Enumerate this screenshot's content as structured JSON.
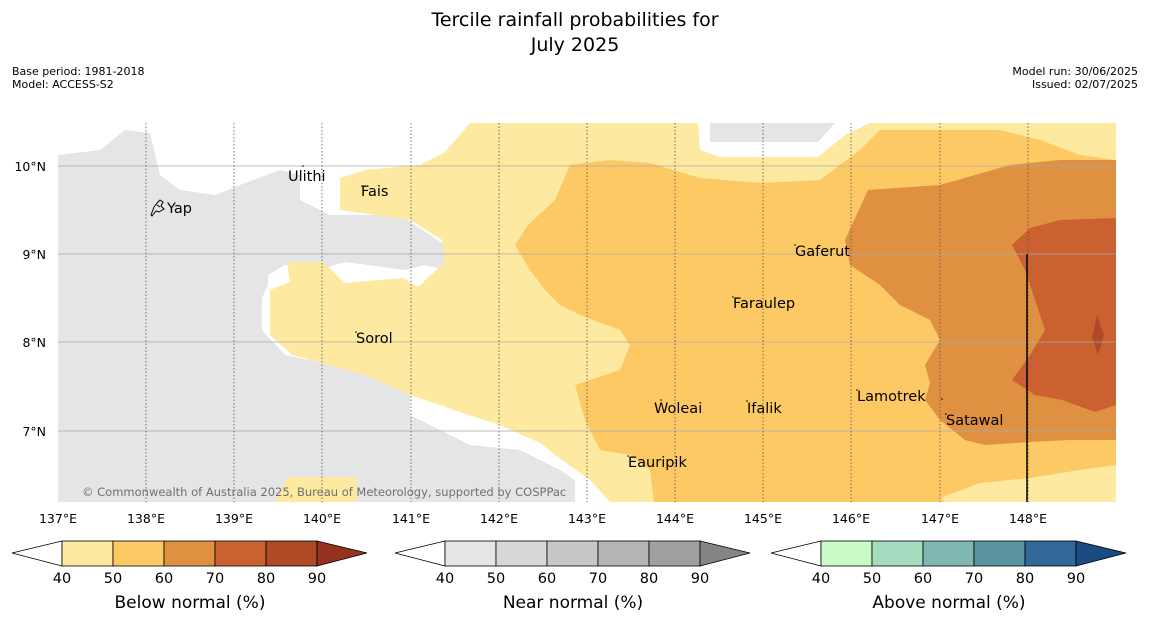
{
  "title": {
    "line1": "Tercile rainfall probabilities for",
    "line2": "July 2025"
  },
  "meta_left": {
    "base_period": "Base period: 1981-2018",
    "model": "Model: ACCESS-S2"
  },
  "meta_right": {
    "model_run": "Model run: 30/06/2025",
    "issued": "Issued: 02/07/2025"
  },
  "copyright": "© Commonwealth of Australia 2025, Bureau of Meteorology, supported by COSPPac",
  "map": {
    "lon_labels": [
      "137°E",
      "138°E",
      "139°E",
      "140°E",
      "141°E",
      "142°E",
      "143°E",
      "144°E",
      "145°E",
      "146°E",
      "147°E",
      "148°E"
    ],
    "lat_labels": [
      "10°N",
      "9°N",
      "8°N",
      "7°N"
    ],
    "places": [
      {
        "name": "Ulithi"
      },
      {
        "name": "Fais"
      },
      {
        "name": "Yap"
      },
      {
        "name": "Gaferut"
      },
      {
        "name": "Faraulep"
      },
      {
        "name": "Sorol"
      },
      {
        "name": "Lamotrek"
      },
      {
        "name": "Woleai"
      },
      {
        "name": "Ifalik"
      },
      {
        "name": "Satawal"
      },
      {
        "name": "Eauripik"
      }
    ],
    "colors": {
      "background": "#ffffff",
      "near_normal_fill": "#e5e5e5",
      "below_40_50": "#fee9a1",
      "below_50_60": "#fdc964",
      "below_60_70": "#df9141",
      "below_70_80": "#cb6130",
      "below_80_90": "#ae4a26"
    }
  },
  "colorbars": [
    {
      "label": "Below normal (%)",
      "ticks": [
        "40",
        "50",
        "60",
        "70",
        "80",
        "90"
      ],
      "colors": [
        "#fee9a1",
        "#fdc964",
        "#df9141",
        "#cb6130",
        "#ae4a26"
      ],
      "over": "#943320"
    },
    {
      "label": "Near normal (%)",
      "ticks": [
        "40",
        "50",
        "60",
        "70",
        "80",
        "90"
      ],
      "colors": [
        "#e5e5e5",
        "#d7d7d7",
        "#c7c7c7",
        "#b5b5b5",
        "#a0a0a0"
      ],
      "over": "#858585"
    },
    {
      "label": "Above normal (%)",
      "ticks": [
        "40",
        "50",
        "60",
        "70",
        "80",
        "90"
      ],
      "colors": [
        "#c9fbc8",
        "#a5dbbf",
        "#80b7b2",
        "#5a94a1",
        "#306899"
      ],
      "over": "#1b4b80"
    }
  ]
}
